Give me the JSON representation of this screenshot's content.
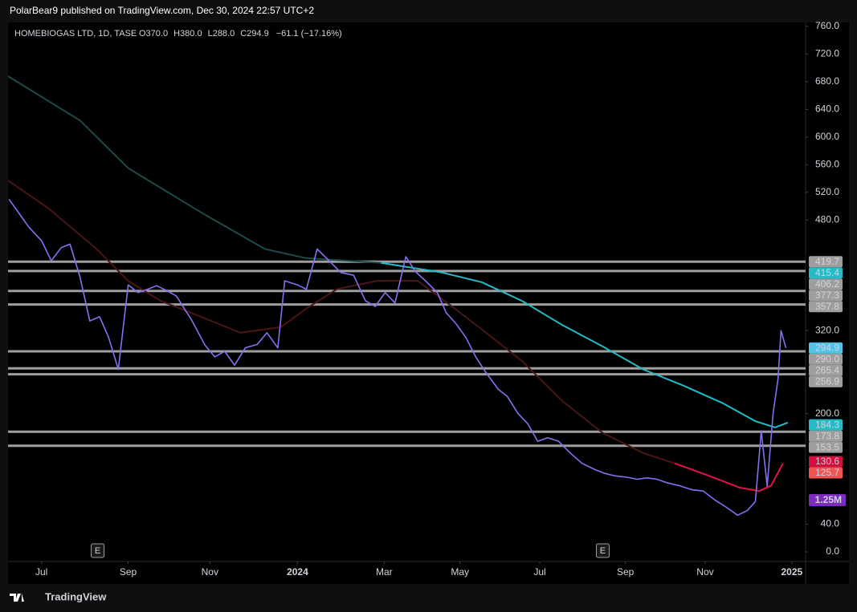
{
  "header": {
    "title": "PolarBear9 published on TradingView.com, Dec 30, 2024 22:57 UTC+2"
  },
  "footer": {
    "brand": "TradingView"
  },
  "chart_data": {
    "type": "line",
    "legend": {
      "symbol": "HOMEBIOGAS LTD, 1D, TASE",
      "ohlc": [
        "O370.0",
        "H380.0",
        "L288.0",
        "C294.9"
      ],
      "change": "−61.1 (−17.16%)"
    },
    "xlim": [
      -3.4,
      77.6
    ],
    "ylim": [
      -13.9,
      765.7
    ],
    "xticks": [
      {
        "value": 0,
        "label": "Jul"
      },
      {
        "value": 8.8,
        "label": "Sep"
      },
      {
        "value": 17.1,
        "label": "Nov"
      },
      {
        "value": 26,
        "label": "2024"
      },
      {
        "value": 34.8,
        "label": "Mar"
      },
      {
        "value": 42.5,
        "label": "May"
      },
      {
        "value": 50.6,
        "label": "Jul"
      },
      {
        "value": 59.3,
        "label": "Sep"
      },
      {
        "value": 67.4,
        "label": "Nov"
      },
      {
        "value": 76.2,
        "label": "2025"
      }
    ],
    "yticks": [
      {
        "value": 760,
        "label": "760.0"
      },
      {
        "value": 720,
        "label": "720.0"
      },
      {
        "value": 680,
        "label": "680.0"
      },
      {
        "value": 640,
        "label": "640.0"
      },
      {
        "value": 600,
        "label": "600.0"
      },
      {
        "value": 560,
        "label": "560.0"
      },
      {
        "value": 520,
        "label": "520.0"
      },
      {
        "value": 480,
        "label": "480.0"
      },
      {
        "value": 320,
        "label": "320.0"
      },
      {
        "value": 200,
        "label": "200.0"
      },
      {
        "value": 40,
        "label": "40.0"
      },
      {
        "value": 0,
        "label": "0.0"
      }
    ],
    "series": [
      {
        "color": "#1b4a47",
        "x": [
          -3.4,
          3.9,
          8.8,
          16.2,
          22.7,
          26.8,
          34.5
        ],
        "values": [
          688,
          624,
          555,
          491,
          438,
          425,
          418
        ]
      },
      {
        "color": "#22bcc6",
        "x": [
          34.5,
          40.7,
          44.7,
          48.8,
          52.9,
          57,
          61.1,
          65.1,
          69.2,
          72.5,
          74.5,
          75.8
        ],
        "values": [
          418,
          404,
          390,
          363,
          328,
          297,
          264,
          241,
          215,
          189,
          180,
          187
        ]
      },
      {
        "color": "#4a1515",
        "x": [
          -3.4,
          0.7,
          5.6,
          8.8,
          12.1,
          16.2,
          20.2,
          24.3,
          26.8,
          30,
          34.1,
          38.2,
          41.5,
          44.7,
          48.8,
          52.9,
          57,
          61.1,
          64.3
        ],
        "values": [
          537,
          497,
          438,
          392,
          363,
          340,
          317,
          325,
          351,
          380,
          392,
          392,
          357,
          322,
          276,
          218,
          172,
          143,
          128
        ]
      },
      {
        "color": "#e0134a",
        "x": [
          64.3,
          67.6,
          70.9,
          72.9,
          74.1,
          75.3
        ],
        "values": [
          128,
          111,
          93,
          88,
          96,
          128
        ]
      },
      {
        "color": "#8a6ef0",
        "x": [
          -3.3,
          -2.3,
          -1.3,
          0,
          1,
          2,
          2.9,
          3.9,
          4.9,
          5.9,
          6.8,
          7.8,
          8.8,
          9.8,
          10.8,
          11.7,
          12.7,
          13.7,
          15.3,
          16.6,
          17.6,
          18.6,
          19.6,
          20.7,
          21.9,
          22.9,
          24,
          24.7,
          26,
          26.9,
          28,
          29.2,
          30.4,
          31.7,
          32.9,
          33.9,
          34.9,
          35.9,
          37,
          38,
          39,
          40.2,
          41.1,
          42.1,
          43.1,
          44.1,
          45.1,
          46.4,
          47.3,
          48.4,
          49.4,
          50.4,
          51.4,
          52.5,
          53.7,
          54.9,
          56.2,
          57.1,
          58.2,
          59.4,
          60.5,
          61.5,
          62.5,
          63.5,
          64.7,
          66,
          67.2,
          68.4,
          69.5,
          70.7,
          71.7,
          72.5,
          73.1,
          73.7,
          74.3,
          74.8,
          75.1,
          75.6
        ],
        "values": [
          510,
          490,
          470,
          450,
          421,
          440,
          445,
          398,
          334,
          340,
          311,
          264,
          386,
          375,
          380,
          385,
          378,
          370,
          334,
          299,
          282,
          290,
          270,
          295,
          300,
          317,
          295,
          392,
          386,
          380,
          438,
          421,
          404,
          400,
          363,
          355,
          375,
          360,
          427,
          405,
          392,
          375,
          346,
          330,
          310,
          282,
          260,
          235,
          225,
          200,
          185,
          160,
          165,
          160,
          143,
          128,
          119,
          114,
          110,
          108,
          105,
          107,
          105,
          100,
          96,
          90,
          88,
          75,
          65,
          53,
          60,
          73,
          175,
          95,
          200,
          250,
          320,
          294.9
        ]
      }
    ],
    "levels": {
      "color": "#9e9e9e",
      "items": [
        {
          "value": 419.7,
          "label": "419.7"
        },
        {
          "value": 406.2,
          "label": "406.2"
        },
        {
          "value": 377.3,
          "label": "377.3"
        },
        {
          "value": 357.8,
          "label": "357.8"
        },
        {
          "value": 290,
          "label": "290.0"
        },
        {
          "value": 265.4,
          "label": "265.4"
        },
        {
          "value": 256.9,
          "label": "256.9"
        },
        {
          "value": 173.8,
          "label": "173.8"
        },
        {
          "value": 153.5,
          "label": "153.5"
        }
      ]
    },
    "price_tags": [
      {
        "value": 415.4,
        "label": "415.4",
        "color": "#22bcc6"
      },
      {
        "value": 294.9,
        "label": "294.9",
        "color": "#4fc3e8"
      },
      {
        "value": 184.3,
        "label": "184.3",
        "color": "#22bcc6"
      },
      {
        "value": 130.6,
        "label": "130.6",
        "color": "#d0103f"
      },
      {
        "value": 125.7,
        "label": "125.7",
        "color": "#f05350"
      }
    ],
    "volume_tag": {
      "label": "1.25M",
      "color": "#7b2cbf"
    },
    "events": [
      {
        "x": 5.7,
        "label": "E"
      },
      {
        "x": 57,
        "label": "E"
      }
    ]
  }
}
